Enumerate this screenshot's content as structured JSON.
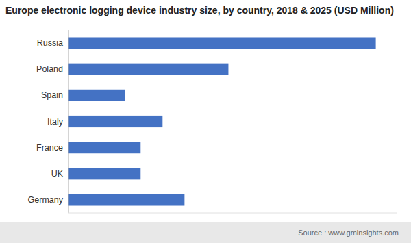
{
  "chart_data": {
    "type": "bar",
    "orientation": "horizontal",
    "title": "Europe electronic logging device industry size, by country, 2018 & 2025 (USD Million)",
    "categories": [
      "Russia",
      "Poland",
      "Spain",
      "Italy",
      "France",
      "UK",
      "Germany"
    ],
    "values": [
      490,
      255,
      90,
      150,
      115,
      115,
      185
    ],
    "color": "#4472c4",
    "xlim": [
      0,
      524.3
    ],
    "grid": false,
    "tick_labels": "y",
    "source": "Source : www.gminsights.com"
  }
}
